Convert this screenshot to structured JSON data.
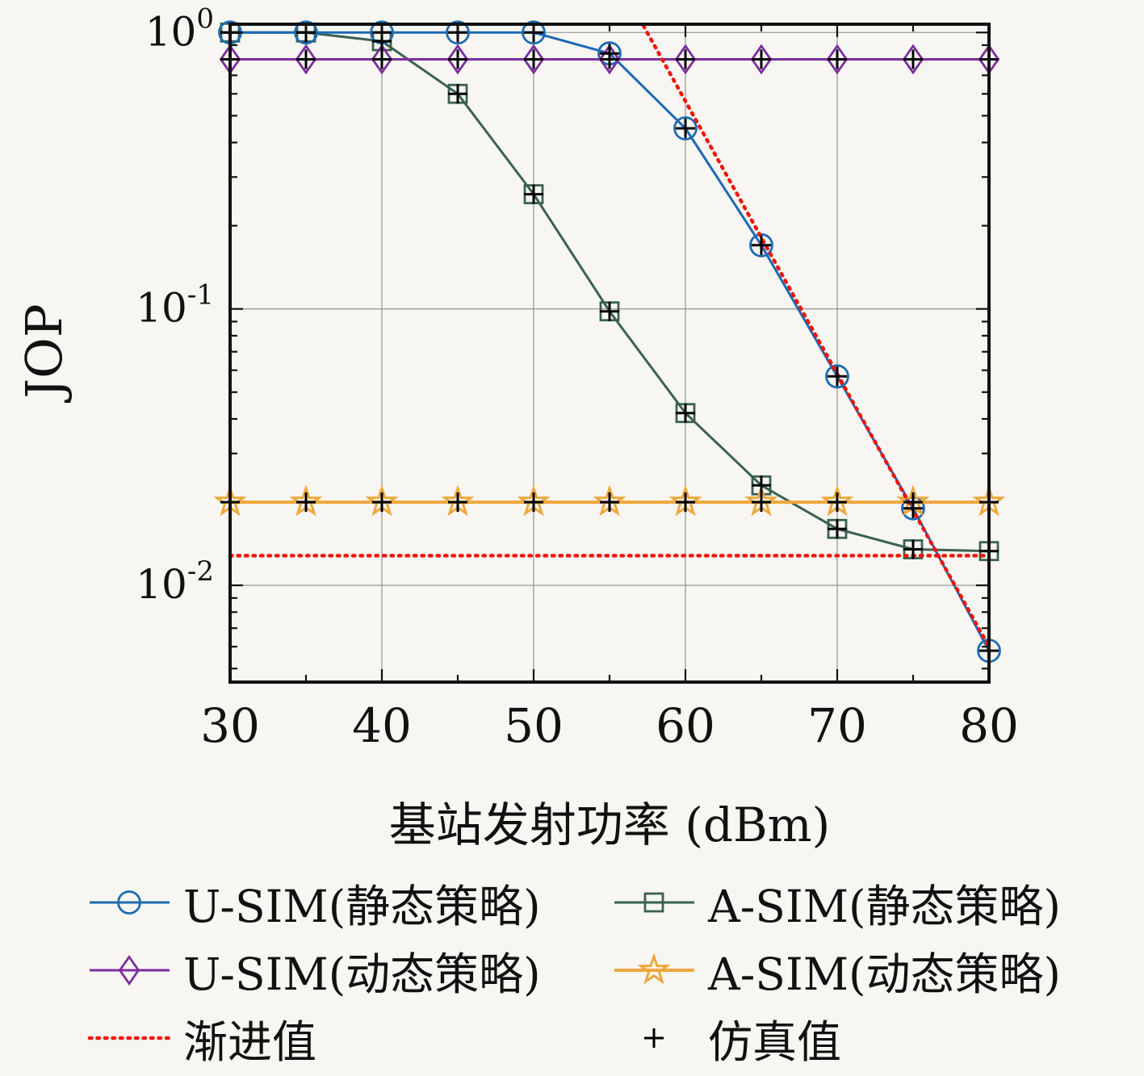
{
  "axes": {
    "x_ticks": [
      30,
      40,
      50,
      60,
      70,
      80
    ],
    "x_minor_ticks": [
      35,
      45,
      55,
      65,
      75
    ],
    "y_tick_exponents": [
      0,
      -1,
      -2
    ],
    "grid_color": "#9a9a9a",
    "border_color": "#111111",
    "tick_color": "#111111"
  },
  "chart_data": {
    "type": "line",
    "title": "",
    "xlabel": "基站发射功率 (dBm)",
    "ylabel": "JOP",
    "y_scale": "log",
    "x_range": [
      30,
      80
    ],
    "y_range": [
      0.00447,
      1.072
    ],
    "grid": true,
    "legend_position": "below",
    "x": [
      30,
      35,
      40,
      45,
      50,
      55,
      60,
      65,
      70,
      75,
      80
    ],
    "series": [
      {
        "name": "A-SIM(静态策略)",
        "marker": "square",
        "color": "#3a6152",
        "values": [
          1.0,
          1.0,
          0.93,
          0.6,
          0.26,
          0.098,
          0.042,
          0.023,
          0.016,
          0.0135,
          0.0133
        ]
      },
      {
        "name": "U-SIM(静态策略)",
        "marker": "circle",
        "color": "#1c6ab3",
        "values": [
          1.0,
          1.0,
          1.0,
          1.0,
          1.0,
          0.84,
          0.45,
          0.17,
          0.057,
          0.019,
          0.0058
        ]
      },
      {
        "name": "U-SIM(动态策略)",
        "marker": "diamond",
        "color": "#7c2d9c",
        "values": [
          0.8,
          0.8,
          0.8,
          0.8,
          0.8,
          0.8,
          0.8,
          0.8,
          0.8,
          0.8,
          0.8
        ]
      },
      {
        "name": "A-SIM(动态策略)",
        "marker": "star",
        "color": "#efa73b",
        "values": [
          0.02,
          0.02,
          0.02,
          0.02,
          0.02,
          0.02,
          0.02,
          0.02,
          0.02,
          0.02,
          0.02
        ]
      }
    ],
    "asymptote": {
      "name": "渐进值",
      "color": "#f01408",
      "style": "dotted",
      "diagonal": {
        "x1": 56.5,
        "v1": 1.25,
        "x2": 80,
        "v2": 0.006
      },
      "horizontal_value": 0.0128
    },
    "simulation_markers": {
      "name": "仿真值",
      "marker": "plus",
      "color": "#000000"
    }
  },
  "legend": {
    "entries": [
      {
        "label": "U-SIM(静态策略)",
        "marker": "circle",
        "color": "#1c6ab3",
        "line": "solid"
      },
      {
        "label": "A-SIM(静态策略)",
        "marker": "square",
        "color": "#3a6152",
        "line": "solid"
      },
      {
        "label": "U-SIM(动态策略)",
        "marker": "diamond",
        "color": "#7c2d9c",
        "line": "solid"
      },
      {
        "label": "A-SIM(动态策略)",
        "marker": "star",
        "color": "#efa73b",
        "line": "solid"
      },
      {
        "label": "渐进值",
        "marker": "none",
        "color": "#f01408",
        "line": "dotted"
      },
      {
        "label": "仿真值",
        "marker": "plus",
        "color": "#000000",
        "line": "none"
      }
    ]
  }
}
